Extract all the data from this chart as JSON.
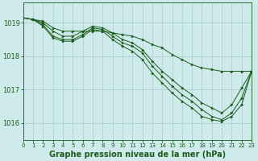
{
  "background_color": "#ceeaea",
  "grid_color": "#aed0d0",
  "line_color": "#1a5c1a",
  "title": "Graphe pression niveau de la mer (hPa)",
  "xlim": [
    0,
    23
  ],
  "ylim": [
    1015.5,
    1019.6
  ],
  "yticks": [
    1016,
    1017,
    1018,
    1019
  ],
  "xticks": [
    0,
    1,
    2,
    3,
    4,
    5,
    6,
    7,
    8,
    9,
    10,
    11,
    12,
    13,
    14,
    15,
    16,
    17,
    18,
    19,
    20,
    21,
    22,
    23
  ],
  "series": [
    [
      1019.15,
      1019.1,
      1019.05,
      1018.85,
      1018.75,
      1018.75,
      1018.75,
      1018.75,
      1018.75,
      1018.7,
      1018.65,
      1018.6,
      1018.5,
      1018.35,
      1018.25,
      1018.05,
      1017.9,
      1017.75,
      1017.65,
      1017.6,
      1017.55,
      1017.55,
      1017.55,
      1017.55
    ],
    [
      1019.15,
      1019.1,
      1019.0,
      1018.75,
      1018.6,
      1018.6,
      1018.75,
      1018.9,
      1018.85,
      1018.7,
      1018.5,
      1018.4,
      1018.2,
      1017.85,
      1017.55,
      1017.3,
      1017.05,
      1016.85,
      1016.6,
      1016.45,
      1016.3,
      1016.55,
      1017.05,
      1017.55
    ],
    [
      1019.15,
      1019.1,
      1018.95,
      1018.6,
      1018.5,
      1018.5,
      1018.65,
      1018.85,
      1018.8,
      1018.6,
      1018.4,
      1018.3,
      1018.1,
      1017.7,
      1017.4,
      1017.1,
      1016.85,
      1016.65,
      1016.4,
      1016.2,
      1016.1,
      1016.3,
      1016.75,
      1017.55
    ],
    [
      1019.15,
      1019.1,
      1018.9,
      1018.55,
      1018.45,
      1018.45,
      1018.6,
      1018.8,
      1018.75,
      1018.5,
      1018.3,
      1018.15,
      1017.9,
      1017.5,
      1017.2,
      1016.9,
      1016.65,
      1016.45,
      1016.2,
      1016.1,
      1016.05,
      1016.2,
      1016.55,
      1017.55
    ]
  ]
}
